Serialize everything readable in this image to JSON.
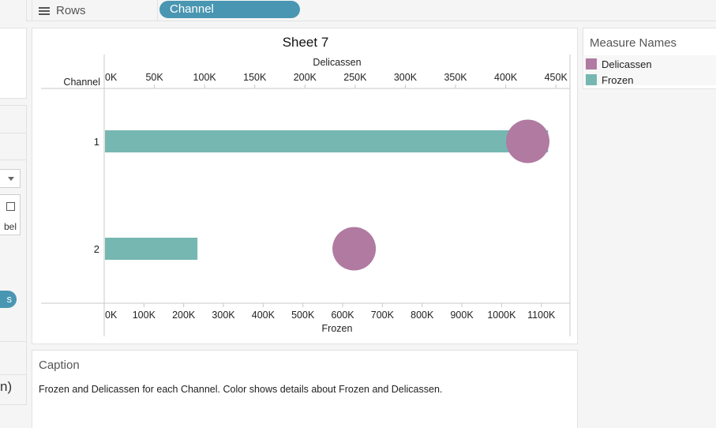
{
  "shelf": {
    "rows_label": "Rows",
    "rows_pill": "Channel"
  },
  "left_panel": {
    "label_fragment": "bel",
    "pill_fragment": "s",
    "paren_fragment": "n)"
  },
  "sheet": {
    "title": "Sheet 7"
  },
  "legend": {
    "title": "Measure Names",
    "items": [
      {
        "label": "Delicassen",
        "color": "#b07aa1"
      },
      {
        "label": "Frozen",
        "color": "#76b7b2"
      }
    ]
  },
  "caption": {
    "title": "Caption",
    "text": "Frozen and Delicassen for each Channel.  Color shows details about Frozen and Delicassen."
  },
  "chart_data": {
    "type": "bar",
    "title": "Sheet 7",
    "row_header": "Channel",
    "categories": [
      "1",
      "2"
    ],
    "series": [
      {
        "name": "Frozen",
        "mark": "bar",
        "axis": "bottom",
        "color": "#76b7b2",
        "values": [
          1116979,
          234671
        ]
      },
      {
        "name": "Delicassen",
        "mark": "circle",
        "axis": "top",
        "color": "#b07aa1",
        "values": [
          421955,
          248988
        ]
      }
    ],
    "top_axis": {
      "label": "Delicassen",
      "range": [
        0,
        464000
      ],
      "ticks": [
        0,
        50000,
        100000,
        150000,
        200000,
        250000,
        300000,
        350000,
        400000,
        450000
      ],
      "tick_labels": [
        "0K",
        "50K",
        "100K",
        "150K",
        "200K",
        "250K",
        "300K",
        "350K",
        "400K",
        "450K"
      ]
    },
    "bottom_axis": {
      "label": "Frozen",
      "range": [
        0,
        1172000
      ],
      "ticks": [
        0,
        100000,
        200000,
        300000,
        400000,
        500000,
        600000,
        700000,
        800000,
        900000,
        1000000,
        1100000
      ],
      "tick_labels": [
        "0K",
        "100K",
        "200K",
        "300K",
        "400K",
        "500K",
        "600K",
        "700K",
        "800K",
        "900K",
        "1000K",
        "1100K"
      ]
    },
    "legend": "right",
    "grid": false
  }
}
